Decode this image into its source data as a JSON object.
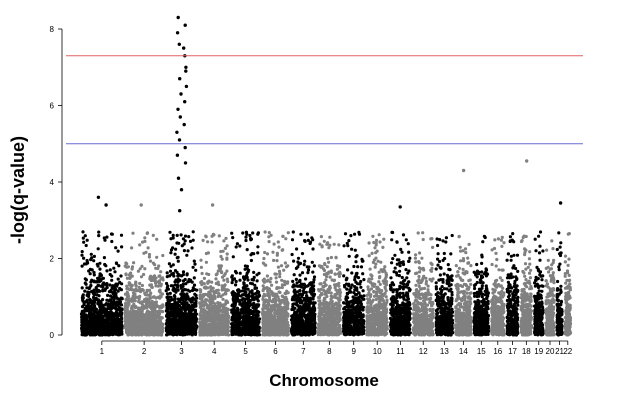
{
  "chart_data": {
    "type": "scatter",
    "subtype": "manhattan",
    "xlabel": "Chromosome",
    "ylabel": "-log(q-value)",
    "ylim": [
      0,
      8.5
    ],
    "yticks": [
      0,
      2,
      4,
      6,
      8
    ],
    "grid": false,
    "legend": "none",
    "chromosomes": [
      "1",
      "2",
      "3",
      "4",
      "5",
      "6",
      "7",
      "8",
      "9",
      "10",
      "11",
      "12",
      "13",
      "14",
      "15",
      "16",
      "17",
      "18",
      "19",
      "20",
      "21",
      "22"
    ],
    "chromosome_colors": [
      "#000000",
      "#808080"
    ],
    "thresholds": [
      {
        "value": 7.3,
        "color": "#e06060"
      },
      {
        "value": 5.0,
        "color": "#6a6ad8"
      }
    ],
    "typical_max_per_chromosome": [
      3.6,
      3.4,
      8.3,
      3.4,
      3.2,
      3.0,
      3.2,
      3.0,
      2.9,
      2.8,
      3.35,
      2.8,
      2.8,
      4.3,
      2.8,
      2.9,
      2.7,
      4.55,
      3.05,
      3.1,
      3.45,
      2.7
    ],
    "notable_points": [
      {
        "chromosome": "3",
        "y": 8.3
      },
      {
        "chromosome": "3",
        "y": 8.1
      },
      {
        "chromosome": "3",
        "y": 7.9
      },
      {
        "chromosome": "3",
        "y": 7.6
      },
      {
        "chromosome": "3",
        "y": 7.5
      },
      {
        "chromosome": "3",
        "y": 7.3
      },
      {
        "chromosome": "3",
        "y": 7.0
      },
      {
        "chromosome": "3",
        "y": 6.9
      },
      {
        "chromosome": "3",
        "y": 6.7
      },
      {
        "chromosome": "3",
        "y": 6.5
      },
      {
        "chromosome": "3",
        "y": 6.3
      },
      {
        "chromosome": "3",
        "y": 6.1
      },
      {
        "chromosome": "3",
        "y": 5.9
      },
      {
        "chromosome": "3",
        "y": 5.7
      },
      {
        "chromosome": "3",
        "y": 5.5
      },
      {
        "chromosome": "3",
        "y": 5.3
      },
      {
        "chromosome": "3",
        "y": 5.1
      },
      {
        "chromosome": "3",
        "y": 4.9
      },
      {
        "chromosome": "3",
        "y": 4.7
      },
      {
        "chromosome": "3",
        "y": 4.5
      },
      {
        "chromosome": "3",
        "y": 4.1
      },
      {
        "chromosome": "3",
        "y": 3.8
      },
      {
        "chromosome": "3",
        "y": 3.25
      },
      {
        "chromosome": "14",
        "y": 4.3
      },
      {
        "chromosome": "18",
        "y": 4.55
      },
      {
        "chromosome": "1",
        "y": 3.6
      },
      {
        "chromosome": "1",
        "y": 3.4
      },
      {
        "chromosome": "2",
        "y": 3.4
      },
      {
        "chromosome": "4",
        "y": 3.4
      },
      {
        "chromosome": "11",
        "y": 3.35
      },
      {
        "chromosome": "21",
        "y": 3.45
      }
    ]
  }
}
